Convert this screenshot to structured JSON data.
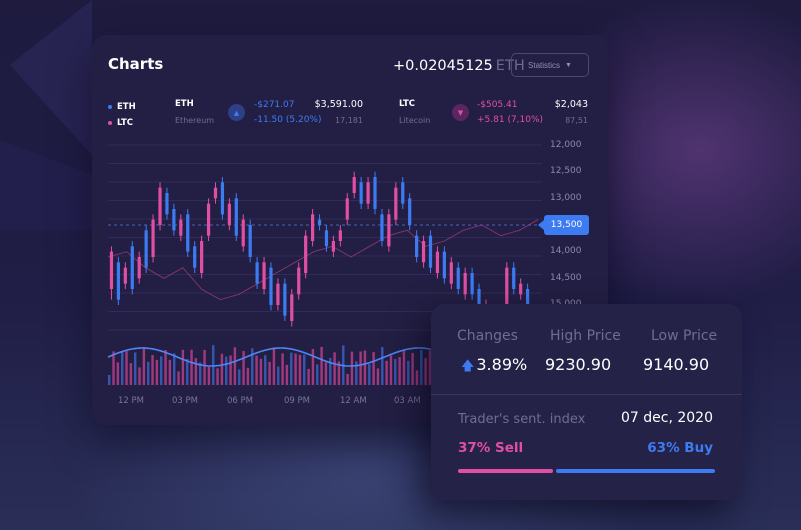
{
  "colors": {
    "up": "#3d7bf2",
    "down": "#e04fa3",
    "grid": "#5b4a9a",
    "volume_up": "#3a67c9",
    "volume_down": "#c2408e"
  },
  "card": {
    "title": "Charts",
    "price_value": "+0.02045125",
    "price_unit": "ETH",
    "stats_button": "Statistics",
    "stats_caret_icon": "caret-down-icon"
  },
  "legend": [
    {
      "label": "ETH",
      "color": "#3d7bf2"
    },
    {
      "label": "LTC",
      "color": "#e04fa3"
    }
  ],
  "coins": [
    {
      "symbol": "ETH",
      "name": "Ethereum",
      "trend": "up",
      "trend_icon": "triangle-up-icon",
      "change_abs": "-$271.07",
      "change_pct": "-11.50 (5.20%)",
      "price": "$3,591.00",
      "volume": "17,181"
    },
    {
      "symbol": "LTC",
      "name": "Litecoin",
      "trend": "down",
      "trend_icon": "triangle-down-icon",
      "change_abs": "-$505.41",
      "change_pct": "+5.81 (7,10%)",
      "price": "$2,043",
      "volume": "87,51"
    }
  ],
  "chart_data": {
    "type": "candlestick",
    "y_ticks": [
      "12,000",
      "12,500",
      "13,000",
      "13,500",
      "14,000",
      "14,500",
      "15,000"
    ],
    "ylim": [
      12000,
      15000
    ],
    "current_price": "13,500",
    "current_price_value": 13500,
    "x_ticks": [
      "12 PM",
      "03 PM",
      "06 PM",
      "09 PM",
      "12 AM",
      "03 AM"
    ],
    "grid": true,
    "candles": [
      [
        14700,
        14000,
        14900,
        13900
      ],
      [
        14200,
        14900,
        15000,
        14100
      ],
      [
        14600,
        14300,
        14700,
        14200
      ],
      [
        13900,
        14700,
        14800,
        13800
      ],
      [
        14500,
        14100,
        14600,
        14000
      ],
      [
        13600,
        14300,
        14400,
        13500
      ],
      [
        14100,
        13400,
        14200,
        13300
      ],
      [
        13500,
        12800,
        13600,
        12700
      ],
      [
        12900,
        13300,
        13400,
        12800
      ],
      [
        13200,
        13600,
        13700,
        13100
      ],
      [
        13700,
        13400,
        13800,
        13300
      ],
      [
        13300,
        14000,
        14100,
        13200
      ],
      [
        13900,
        14300,
        14400,
        13800
      ],
      [
        14400,
        13800,
        14500,
        13700
      ],
      [
        13700,
        13100,
        13800,
        13000
      ],
      [
        13000,
        12800,
        13100,
        12700
      ],
      [
        12700,
        13300,
        13400,
        12600
      ],
      [
        13500,
        13100,
        13600,
        13000
      ],
      [
        13000,
        13700,
        13800,
        12900
      ],
      [
        13900,
        13400,
        14000,
        13300
      ],
      [
        13500,
        14100,
        14200,
        13400
      ],
      [
        14200,
        14600,
        14700,
        14100
      ],
      [
        14700,
        14200,
        14800,
        14100
      ],
      [
        14300,
        15000,
        15100,
        14200
      ],
      [
        15000,
        14600,
        15100,
        14500
      ],
      [
        14600,
        15200,
        15300,
        14500
      ],
      [
        15300,
        14800,
        15400,
        14700
      ],
      [
        14800,
        14300,
        14900,
        14200
      ],
      [
        14400,
        13700,
        14500,
        13600
      ],
      [
        13800,
        13300,
        13900,
        13200
      ],
      [
        13400,
        13500,
        13600,
        13300
      ],
      [
        13600,
        13900,
        14000,
        13500
      ],
      [
        14000,
        13800,
        14100,
        13700
      ],
      [
        13800,
        13600,
        13900,
        13500
      ],
      [
        13400,
        13000,
        13500,
        12900
      ],
      [
        12900,
        12600,
        13000,
        12500
      ],
      [
        12700,
        13100,
        13200,
        12600
      ],
      [
        13100,
        12700,
        13200,
        12600
      ],
      [
        12600,
        13200,
        13300,
        12500
      ],
      [
        13300,
        13800,
        13900,
        13200
      ],
      [
        13900,
        13300,
        14000,
        13200
      ],
      [
        13400,
        12800,
        13500,
        12700
      ],
      [
        12700,
        13100,
        13200,
        12600
      ],
      [
        13000,
        13500,
        13600,
        12900
      ],
      [
        13700,
        14100,
        14200,
        13600
      ],
      [
        14200,
        13800,
        14300,
        13700
      ],
      [
        13700,
        14300,
        14400,
        13600
      ],
      [
        14400,
        14000,
        14500,
        13900
      ],
      [
        14000,
        14500,
        14600,
        13900
      ],
      [
        14600,
        14200,
        14700,
        14100
      ],
      [
        14300,
        14700,
        14800,
        14200
      ],
      [
        14800,
        14400,
        14900,
        14300
      ],
      [
        14400,
        14800,
        14900,
        14300
      ],
      [
        14700,
        15200,
        15300,
        14600
      ],
      [
        15300,
        15000,
        15400,
        14900
      ],
      [
        15100,
        15500,
        15600,
        15000
      ],
      [
        15500,
        15200,
        15600,
        15100
      ],
      [
        15000,
        14300,
        15100,
        14200
      ],
      [
        14300,
        14700,
        14800,
        14200
      ],
      [
        14800,
        14600,
        14900,
        14500
      ],
      [
        14700,
        15200,
        15300,
        14600
      ],
      [
        15200,
        15100,
        15300,
        15000
      ]
    ],
    "avg_line": [
      14100,
      14000,
      14300,
      14500,
      14300,
      14700,
      14900,
      14800,
      14600,
      14400,
      14200,
      14000,
      13900,
      14100,
      13900,
      13700,
      13600,
      13900,
      13800,
      13600,
      13500,
      13700,
      13600,
      13400
    ]
  },
  "panel": {
    "headers": [
      "Changes",
      "High Price",
      "Low Price"
    ],
    "change_icon": "arrow-up-icon",
    "change": "3.89%",
    "high": "9230.90",
    "low": "9140.90",
    "sentiment_label": "Trader's sent. index",
    "date": "07 dec, 2020",
    "sell_label": "37% Sell",
    "buy_label": "63% Buy",
    "sell_fraction": 0.37,
    "buy_fraction": 0.63
  }
}
